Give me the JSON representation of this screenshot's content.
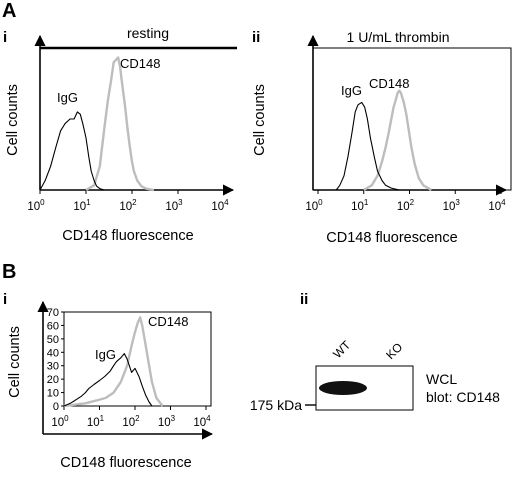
{
  "figure": {
    "panel_A": {
      "letter": "A",
      "sub_i": "i",
      "sub_ii": "ii",
      "condition_i": "resting",
      "condition_ii": "1 U/mL thrombin"
    },
    "panel_B": {
      "letter": "B",
      "sub_i": "i",
      "sub_ii": "ii"
    },
    "x_axis_title": "CD148 fluorescence",
    "y_axis_title": "Cell counts",
    "x_ticks": [
      {
        "base": "10",
        "exp": "0"
      },
      {
        "base": "10",
        "exp": "1"
      },
      {
        "base": "10",
        "exp": "2"
      },
      {
        "base": "10",
        "exp": "3"
      },
      {
        "base": "10",
        "exp": "4"
      }
    ],
    "series_labels": {
      "control": "IgG",
      "target": "CD148"
    },
    "colors": {
      "igg": "#000000",
      "cd148": "#bdbdbd"
    },
    "western_blot": {
      "lanes": [
        "WT",
        "KO"
      ],
      "marker_label": "175 kDa",
      "annotation_line1": "WCL",
      "annotation_line2": "blot: CD148"
    }
  },
  "chart_data": [
    {
      "type": "line",
      "panel": "A i",
      "title": "resting",
      "xlabel": "CD148 fluorescence",
      "ylabel": "Cell counts",
      "x_scale": "log",
      "xlim": [
        1,
        10000
      ],
      "ylim": [
        0,
        300
      ],
      "y_ticks_shown": false,
      "grid": false,
      "series": [
        {
          "name": "IgG",
          "color": "#000000",
          "x": [
            1,
            1.3,
            1.7,
            2.2,
            2.8,
            3.5,
            4.5,
            5.5,
            6.5,
            7.5,
            8.5,
            10,
            11.5,
            13,
            15,
            17,
            20,
            25,
            30
          ],
          "y": [
            0,
            20,
            50,
            90,
            125,
            140,
            150,
            150,
            165,
            160,
            140,
            110,
            70,
            40,
            20,
            8,
            3,
            0,
            0
          ]
        },
        {
          "name": "CD148",
          "color": "#bdbdbd",
          "x": [
            10,
            15,
            20,
            25,
            30,
            35,
            40,
            45,
            50,
            55,
            60,
            70,
            80,
            90,
            100,
            110,
            130,
            160,
            200,
            300
          ],
          "y": [
            0,
            10,
            50,
            130,
            190,
            230,
            270,
            275,
            280,
            260,
            230,
            180,
            130,
            90,
            60,
            40,
            20,
            8,
            3,
            0
          ]
        }
      ]
    },
    {
      "type": "line",
      "panel": "A ii",
      "title": "1 U/mL thrombin",
      "xlabel": "CD148 fluorescence",
      "ylabel": "Cell counts",
      "x_scale": "log",
      "xlim": [
        1,
        10000
      ],
      "ylim": [
        0,
        300
      ],
      "y_ticks_shown": false,
      "grid": false,
      "series": [
        {
          "name": "IgG",
          "color": "#000000",
          "x": [
            2.5,
            3,
            3.7,
            4.5,
            5.5,
            6.5,
            7.5,
            9,
            10.5,
            12,
            14,
            17,
            20,
            25,
            30,
            40,
            50,
            60
          ],
          "y": [
            0,
            10,
            30,
            70,
            120,
            165,
            180,
            185,
            175,
            150,
            110,
            70,
            40,
            20,
            10,
            4,
            2,
            0
          ]
        },
        {
          "name": "CD148",
          "color": "#bdbdbd",
          "x": [
            10,
            15,
            20,
            25,
            30,
            35,
            40,
            45,
            50,
            55,
            60,
            65,
            75,
            85,
            95,
            110,
            130,
            160,
            200,
            300
          ],
          "y": [
            0,
            10,
            30,
            60,
            90,
            120,
            150,
            175,
            190,
            205,
            210,
            205,
            185,
            160,
            130,
            90,
            55,
            25,
            10,
            0
          ]
        }
      ]
    },
    {
      "type": "line",
      "panel": "B i",
      "xlabel": "CD148 fluorescence",
      "ylabel": "Cell counts",
      "x_scale": "log",
      "xlim": [
        1,
        10000
      ],
      "ylim": [
        0,
        70
      ],
      "y_ticks": [
        0,
        10,
        20,
        30,
        40,
        50,
        60,
        70
      ],
      "grid": false,
      "series": [
        {
          "name": "IgG",
          "color": "#000000",
          "x": [
            1,
            1.5,
            2,
            3,
            4,
            5,
            7,
            10,
            14,
            20,
            25,
            30,
            40,
            50,
            60,
            80,
            100,
            130,
            160,
            200,
            250,
            300
          ],
          "y": [
            0,
            2,
            4,
            7,
            10,
            13,
            16,
            19,
            22,
            26,
            30,
            33,
            36,
            39,
            35,
            25,
            28,
            22,
            15,
            8,
            3,
            0
          ]
        },
        {
          "name": "CD148",
          "color": "#bdbdbd",
          "x": [
            1,
            2,
            4,
            8,
            15,
            25,
            40,
            60,
            80,
            100,
            120,
            140,
            160,
            180,
            200,
            250,
            300,
            400,
            600
          ],
          "y": [
            0,
            1,
            2,
            4,
            6,
            10,
            18,
            30,
            45,
            55,
            62,
            66,
            60,
            52,
            45,
            30,
            18,
            6,
            0
          ]
        }
      ]
    }
  ]
}
